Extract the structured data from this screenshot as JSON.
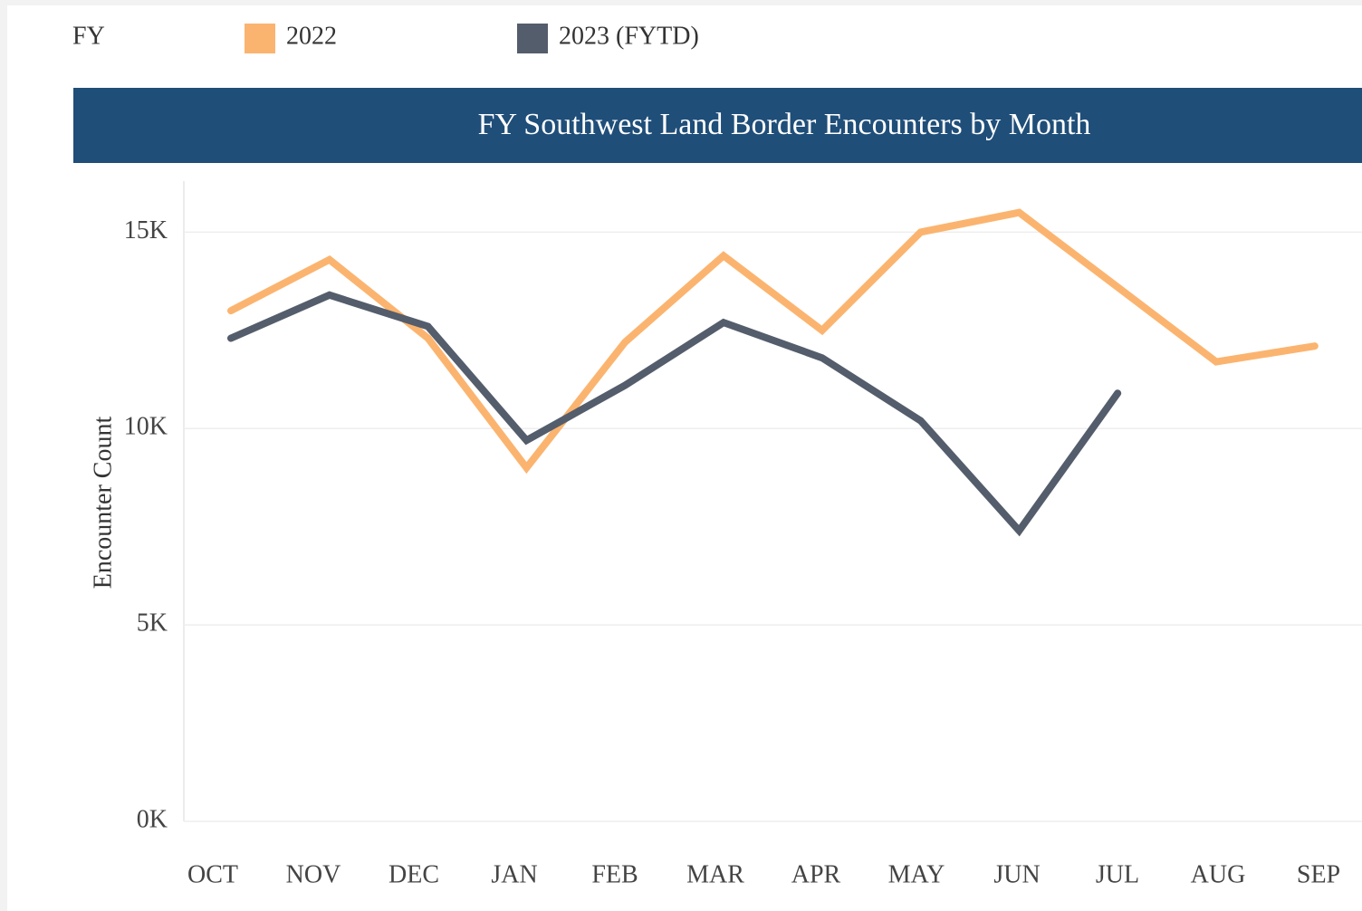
{
  "chart_data": {
    "type": "line",
    "title": "FY Southwest Land Border Encounters by Month",
    "legend_title": "FY",
    "y_label": "Encounter Count",
    "categories": [
      "OCT",
      "NOV",
      "DEC",
      "JAN",
      "FEB",
      "MAR",
      "APR",
      "MAY",
      "JUN",
      "JUL",
      "AUG",
      "SEP"
    ],
    "series": [
      {
        "name": "2022",
        "color": "#fbb46f",
        "values": [
          13000,
          14300,
          12300,
          9000,
          12200,
          14400,
          12500,
          15000,
          15500,
          13600,
          11700,
          12100
        ]
      },
      {
        "name": "2023 (FYTD)",
        "color": "#545d6b",
        "values": [
          12300,
          13400,
          12600,
          9700,
          11100,
          12700,
          11800,
          10200,
          7400,
          10900,
          null,
          null
        ]
      }
    ],
    "ylim": [
      0,
      16300
    ],
    "yticks": [
      {
        "value": 0,
        "label": "0K"
      },
      {
        "value": 5000,
        "label": "5K"
      },
      {
        "value": 10000,
        "label": "10K"
      },
      {
        "value": 15000,
        "label": "15K"
      }
    ],
    "grid": true
  }
}
